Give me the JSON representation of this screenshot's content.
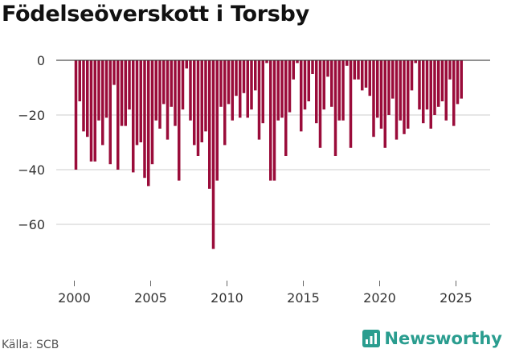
{
  "chart_data": {
    "type": "bar",
    "title": "Födelseöverskott i Torsby",
    "source": "Källa: SCB",
    "color": "#9a0c3a",
    "ylim": [
      -80,
      0
    ],
    "yticks": [
      0,
      -20,
      -40,
      -60
    ],
    "ytick_labels": [
      "0",
      "−20",
      "−40",
      "−60"
    ],
    "xticks": [
      2000,
      2005,
      2010,
      2015,
      2020,
      2025
    ],
    "xtick_labels": [
      "2000",
      "2005",
      "2010",
      "2015",
      "2020",
      "2025"
    ],
    "x_start": 2000,
    "x_step": 0.25,
    "values": [
      -40,
      -15,
      -26,
      -28,
      -37,
      -37,
      -22,
      -31,
      -21,
      -38,
      -9,
      -40,
      -24,
      -24,
      -18,
      -41,
      -31,
      -30,
      -43,
      -46,
      -38,
      -22,
      -25,
      -16,
      -29,
      -17,
      -24,
      -44,
      -18,
      -3,
      -22,
      -31,
      -35,
      -30,
      -26,
      -47,
      -69,
      -44,
      -17,
      -31,
      -16,
      -22,
      -13,
      -21,
      -12,
      -21,
      -18,
      -11,
      -29,
      -23,
      -1,
      -44,
      -44,
      -22,
      -21,
      -35,
      -19,
      -7,
      -1,
      -26,
      -18,
      -15,
      -5,
      -23,
      -32,
      -18,
      -6,
      -17,
      -35,
      -22,
      -22,
      -2,
      -32,
      -7,
      -7,
      -11,
      -10,
      -13,
      -28,
      -21,
      -25,
      -32,
      -20,
      -14,
      -29,
      -22,
      -27,
      -25,
      -11,
      -1,
      -18,
      -23,
      -18,
      -25,
      -20,
      -17,
      -15,
      -22,
      -7,
      -24,
      -16,
      -14
    ]
  },
  "brand": {
    "name": "Newsworthy",
    "logo_color": "#2a9d8f"
  }
}
